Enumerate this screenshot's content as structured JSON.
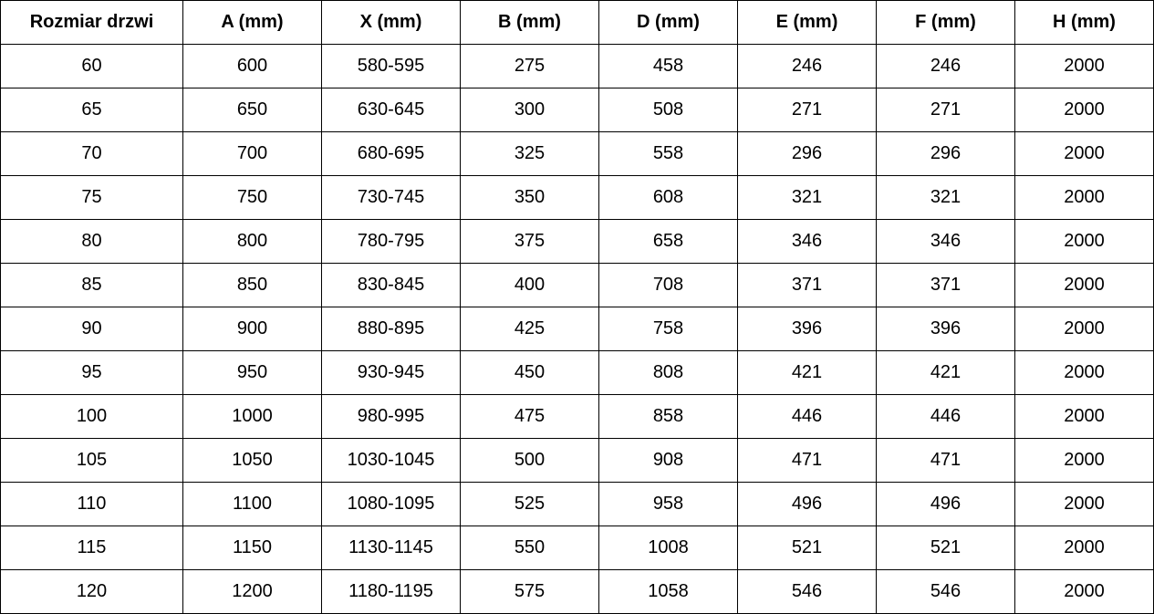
{
  "table": {
    "headers": [
      "Rozmiar drzwi",
      "A (mm)",
      "X (mm)",
      "B (mm)",
      "D (mm)",
      "E (mm)",
      "F (mm)",
      "H (mm)"
    ],
    "rows": [
      [
        "60",
        "600",
        "580-595",
        "275",
        "458",
        "246",
        "246",
        "2000"
      ],
      [
        "65",
        "650",
        "630-645",
        "300",
        "508",
        "271",
        "271",
        "2000"
      ],
      [
        "70",
        "700",
        "680-695",
        "325",
        "558",
        "296",
        "296",
        "2000"
      ],
      [
        "75",
        "750",
        "730-745",
        "350",
        "608",
        "321",
        "321",
        "2000"
      ],
      [
        "80",
        "800",
        "780-795",
        "375",
        "658",
        "346",
        "346",
        "2000"
      ],
      [
        "85",
        "850",
        "830-845",
        "400",
        "708",
        "371",
        "371",
        "2000"
      ],
      [
        "90",
        "900",
        "880-895",
        "425",
        "758",
        "396",
        "396",
        "2000"
      ],
      [
        "95",
        "950",
        "930-945",
        "450",
        "808",
        "421",
        "421",
        "2000"
      ],
      [
        "100",
        "1000",
        "980-995",
        "475",
        "858",
        "446",
        "446",
        "2000"
      ],
      [
        "105",
        "1050",
        "1030-1045",
        "500",
        "908",
        "471",
        "471",
        "2000"
      ],
      [
        "110",
        "1100",
        "1080-1095",
        "525",
        "958",
        "496",
        "496",
        "2000"
      ],
      [
        "115",
        "1150",
        "1130-1145",
        "550",
        "1008",
        "521",
        "521",
        "2000"
      ],
      [
        "120",
        "1200",
        "1180-1195",
        "575",
        "1058",
        "546",
        "546",
        "2000"
      ]
    ]
  }
}
